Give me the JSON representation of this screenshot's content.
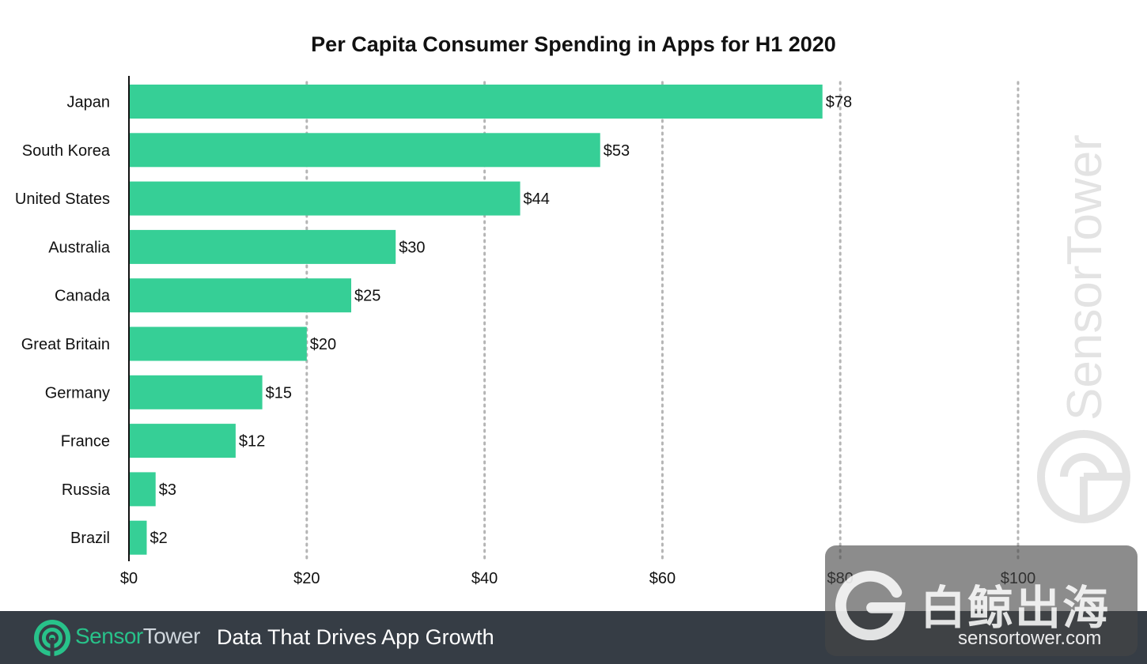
{
  "chart_data": {
    "type": "bar",
    "orientation": "horizontal",
    "title": "Per Capita Consumer Spending in Apps for H1 2020",
    "categories": [
      "Japan",
      "South Korea",
      "United States",
      "Australia",
      "Canada",
      "Great Britain",
      "Germany",
      "France",
      "Russia",
      "Brazil"
    ],
    "values": [
      78,
      53,
      44,
      30,
      25,
      20,
      15,
      12,
      3,
      2
    ],
    "value_labels": [
      "$78",
      "$53",
      "$44",
      "$30",
      "$25",
      "$20",
      "$15",
      "$12",
      "$3",
      "$2"
    ],
    "xlim": [
      0,
      100
    ],
    "x_ticks": [
      0,
      20,
      40,
      60,
      80,
      100
    ],
    "x_tick_labels": [
      "$0",
      "$20",
      "$40",
      "$60",
      "$80",
      "$100"
    ],
    "xlabel": "",
    "ylabel": "",
    "grid": "vertical dotted",
    "bar_color": "#36cf96"
  },
  "watermark": {
    "text": "SensorTower"
  },
  "footer": {
    "brand_part1": "Sensor",
    "brand_part2": "Tower",
    "tagline": "Data That Drives App Growth",
    "brand_color": "#28c28a",
    "background_color": "#363d45"
  },
  "overlay_badge": {
    "chinese_text": "白鲸出海",
    "url": "sensortower.com"
  }
}
